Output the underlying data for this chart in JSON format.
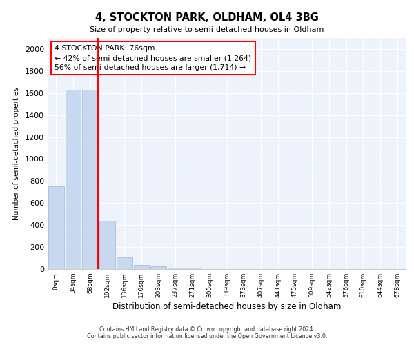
{
  "title": "4, STOCKTON PARK, OLDHAM, OL4 3BG",
  "subtitle": "Size of property relative to semi-detached houses in Oldham",
  "xlabel": "Distribution of semi-detached houses by size in Oldham",
  "ylabel": "Number of semi-detached properties",
  "categories": [
    "0sqm",
    "34sqm",
    "68sqm",
    "102sqm",
    "136sqm",
    "170sqm",
    "203sqm",
    "237sqm",
    "271sqm",
    "305sqm",
    "339sqm",
    "373sqm",
    "407sqm",
    "441sqm",
    "475sqm",
    "509sqm",
    "542sqm",
    "576sqm",
    "610sqm",
    "644sqm",
    "678sqm"
  ],
  "values": [
    750,
    1630,
    1630,
    440,
    105,
    40,
    25,
    15,
    15,
    0,
    0,
    0,
    0,
    0,
    0,
    0,
    0,
    0,
    0,
    0,
    0
  ],
  "bar_color": "#c8d9ef",
  "bar_edge_color": "#a0b8d8",
  "annotation_text": "4 STOCKTON PARK: 76sqm\n← 42% of semi-detached houses are smaller (1,264)\n56% of semi-detached houses are larger (1,714) →",
  "annotation_box_color": "white",
  "annotation_box_edge_color": "red",
  "red_line_x": 2.45,
  "ylim": [
    0,
    2100
  ],
  "yticks": [
    0,
    200,
    400,
    600,
    800,
    1000,
    1200,
    1400,
    1600,
    1800,
    2000
  ],
  "background_color": "#eef2fb",
  "footer_line1": "Contains HM Land Registry data © Crown copyright and database right 2024.",
  "footer_line2": "Contains public sector information licensed under the Open Government Licence v3.0."
}
